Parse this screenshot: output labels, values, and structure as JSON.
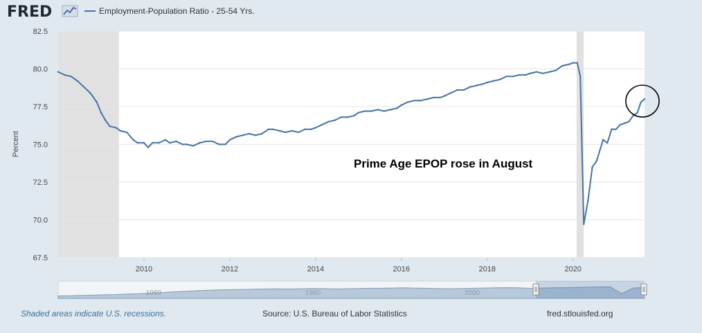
{
  "brand": {
    "logo_text": "FRED"
  },
  "legend": {
    "label": "Employment-Population Ratio - 25-54 Yrs."
  },
  "colors": {
    "series": "#4572a7",
    "recession": "#e1e1e1",
    "background": "#e1e9f0",
    "plot": "#ffffff"
  },
  "annotation": {
    "text": "Prime Age EPOP rose in August"
  },
  "chart_data": {
    "type": "line",
    "title": "",
    "xlabel": "",
    "ylabel": "Percent",
    "xlim": [
      2008.0,
      2021.667
    ],
    "ylim": [
      67.5,
      82.5
    ],
    "yticks": [
      67.5,
      70.0,
      72.5,
      75.0,
      77.5,
      80.0,
      82.5
    ],
    "xticks": [
      2010,
      2012,
      2014,
      2016,
      2018,
      2020
    ],
    "grid": true,
    "legend_position": "top-left",
    "recessions": [
      [
        2008.0,
        2009.417
      ],
      [
        2020.083,
        2020.25
      ]
    ],
    "series": [
      {
        "name": "Employment-Population Ratio - 25-54 Yrs.",
        "points": [
          [
            2008.0,
            79.8
          ],
          [
            2008.15,
            79.6
          ],
          [
            2008.3,
            79.5
          ],
          [
            2008.45,
            79.2
          ],
          [
            2008.6,
            78.8
          ],
          [
            2008.75,
            78.4
          ],
          [
            2008.9,
            77.8
          ],
          [
            2009.0,
            77.1
          ],
          [
            2009.1,
            76.6
          ],
          [
            2009.2,
            76.2
          ],
          [
            2009.35,
            76.1
          ],
          [
            2009.45,
            75.9
          ],
          [
            2009.6,
            75.8
          ],
          [
            2009.75,
            75.3
          ],
          [
            2009.85,
            75.1
          ],
          [
            2010.0,
            75.1
          ],
          [
            2010.1,
            74.8
          ],
          [
            2010.2,
            75.1
          ],
          [
            2010.35,
            75.1
          ],
          [
            2010.5,
            75.3
          ],
          [
            2010.6,
            75.1
          ],
          [
            2010.75,
            75.2
          ],
          [
            2010.9,
            75.0
          ],
          [
            2011.0,
            75.0
          ],
          [
            2011.15,
            74.9
          ],
          [
            2011.3,
            75.1
          ],
          [
            2011.45,
            75.2
          ],
          [
            2011.6,
            75.2
          ],
          [
            2011.75,
            75.0
          ],
          [
            2011.9,
            75.0
          ],
          [
            2012.0,
            75.3
          ],
          [
            2012.15,
            75.5
          ],
          [
            2012.3,
            75.6
          ],
          [
            2012.45,
            75.7
          ],
          [
            2012.6,
            75.6
          ],
          [
            2012.75,
            75.7
          ],
          [
            2012.9,
            76.0
          ],
          [
            2013.0,
            76.0
          ],
          [
            2013.15,
            75.9
          ],
          [
            2013.3,
            75.8
          ],
          [
            2013.45,
            75.9
          ],
          [
            2013.6,
            75.8
          ],
          [
            2013.75,
            76.0
          ],
          [
            2013.9,
            76.0
          ],
          [
            2014.0,
            76.1
          ],
          [
            2014.15,
            76.3
          ],
          [
            2014.3,
            76.5
          ],
          [
            2014.45,
            76.6
          ],
          [
            2014.6,
            76.8
          ],
          [
            2014.75,
            76.8
          ],
          [
            2014.9,
            76.9
          ],
          [
            2015.0,
            77.1
          ],
          [
            2015.15,
            77.2
          ],
          [
            2015.3,
            77.2
          ],
          [
            2015.45,
            77.3
          ],
          [
            2015.6,
            77.2
          ],
          [
            2015.75,
            77.3
          ],
          [
            2015.9,
            77.4
          ],
          [
            2016.0,
            77.6
          ],
          [
            2016.15,
            77.8
          ],
          [
            2016.3,
            77.9
          ],
          [
            2016.45,
            77.9
          ],
          [
            2016.6,
            78.0
          ],
          [
            2016.75,
            78.1
          ],
          [
            2016.9,
            78.1
          ],
          [
            2017.0,
            78.2
          ],
          [
            2017.15,
            78.4
          ],
          [
            2017.3,
            78.6
          ],
          [
            2017.45,
            78.6
          ],
          [
            2017.6,
            78.8
          ],
          [
            2017.75,
            78.9
          ],
          [
            2017.9,
            79.0
          ],
          [
            2018.0,
            79.1
          ],
          [
            2018.15,
            79.2
          ],
          [
            2018.3,
            79.3
          ],
          [
            2018.45,
            79.5
          ],
          [
            2018.6,
            79.5
          ],
          [
            2018.75,
            79.6
          ],
          [
            2018.9,
            79.6
          ],
          [
            2019.0,
            79.7
          ],
          [
            2019.15,
            79.8
          ],
          [
            2019.3,
            79.7
          ],
          [
            2019.45,
            79.8
          ],
          [
            2019.6,
            79.9
          ],
          [
            2019.75,
            80.2
          ],
          [
            2019.9,
            80.3
          ],
          [
            2020.0,
            80.4
          ],
          [
            2020.1,
            80.4
          ],
          [
            2020.17,
            79.5
          ],
          [
            2020.25,
            69.7
          ],
          [
            2020.35,
            71.3
          ],
          [
            2020.45,
            73.5
          ],
          [
            2020.55,
            73.9
          ],
          [
            2020.7,
            75.3
          ],
          [
            2020.8,
            75.1
          ],
          [
            2020.9,
            76.0
          ],
          [
            2021.0,
            76.0
          ],
          [
            2021.1,
            76.3
          ],
          [
            2021.2,
            76.4
          ],
          [
            2021.3,
            76.5
          ],
          [
            2021.4,
            76.9
          ],
          [
            2021.5,
            77.1
          ],
          [
            2021.583,
            77.8
          ],
          [
            2021.667,
            78.0
          ]
        ]
      }
    ],
    "navigator": {
      "ticks": [
        1960,
        1980,
        2000
      ]
    }
  },
  "footer": {
    "left": "Shaded areas indicate U.S. recessions.",
    "source": "Source: U.S. Bureau of Labor Statistics",
    "site": "fred.stlouisfed.org"
  }
}
